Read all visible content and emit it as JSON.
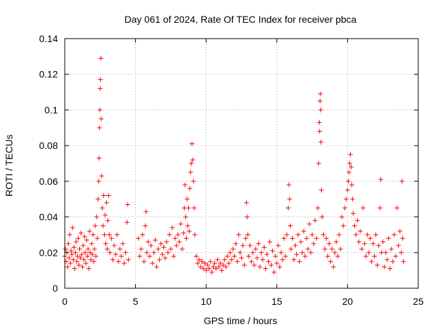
{
  "chart_data": {
    "type": "scatter",
    "title": "Day 061 of 2024, Rate Of TEC Index for receiver pbca",
    "xlabel": "GPS time / hours",
    "ylabel": "ROTI / TECUs",
    "xlim": [
      0,
      25
    ],
    "ylim": [
      0,
      0.14
    ],
    "x_ticks": [
      0,
      5,
      10,
      15,
      20,
      25
    ],
    "x_tick_labels": [
      "0",
      "5",
      "10",
      "15",
      "20",
      "25"
    ],
    "y_ticks": [
      0,
      0.02,
      0.04,
      0.06,
      0.08,
      0.1,
      0.12,
      0.14
    ],
    "y_tick_labels": [
      "0",
      "0.02",
      "0.04",
      "0.06",
      "0.08",
      "0.1",
      "0.12",
      "0.14"
    ],
    "grid": true,
    "marker": "+",
    "series": [
      {
        "name": "ROTI",
        "color": "#ff0000",
        "points": [
          [
            0.0,
            0.018
          ],
          [
            0.05,
            0.022
          ],
          [
            0.1,
            0.015
          ],
          [
            0.15,
            0.02
          ],
          [
            0.2,
            0.012
          ],
          [
            0.25,
            0.025
          ],
          [
            0.3,
            0.017
          ],
          [
            0.35,
            0.03
          ],
          [
            0.4,
            0.014
          ],
          [
            0.45,
            0.021
          ],
          [
            0.5,
            0.019
          ],
          [
            0.55,
            0.034
          ],
          [
            0.6,
            0.016
          ],
          [
            0.65,
            0.023
          ],
          [
            0.7,
            0.011
          ],
          [
            0.75,
            0.02
          ],
          [
            0.8,
            0.026
          ],
          [
            0.85,
            0.015
          ],
          [
            0.9,
            0.018
          ],
          [
            0.95,
            0.028
          ],
          [
            1.0,
            0.013
          ],
          [
            1.05,
            0.022
          ],
          [
            1.1,
            0.017
          ],
          [
            1.15,
            0.031
          ],
          [
            1.2,
            0.019
          ],
          [
            1.25,
            0.012
          ],
          [
            1.3,
            0.024
          ],
          [
            1.35,
            0.016
          ],
          [
            1.4,
            0.029
          ],
          [
            1.45,
            0.02
          ],
          [
            1.5,
            0.014
          ],
          [
            1.55,
            0.027
          ],
          [
            1.6,
            0.018
          ],
          [
            1.65,
            0.022
          ],
          [
            1.7,
            0.011
          ],
          [
            1.75,
            0.032
          ],
          [
            1.8,
            0.02
          ],
          [
            1.85,
            0.016
          ],
          [
            1.9,
            0.025
          ],
          [
            1.95,
            0.019
          ],
          [
            2.0,
            0.03
          ],
          [
            2.05,
            0.015
          ],
          [
            2.1,
            0.022
          ],
          [
            2.15,
            0.035
          ],
          [
            2.2,
            0.018
          ],
          [
            2.25,
            0.04
          ],
          [
            2.3,
            0.028
          ],
          [
            2.35,
            0.05
          ],
          [
            2.4,
            0.06
          ],
          [
            2.42,
            0.073
          ],
          [
            2.45,
            0.09
          ],
          [
            2.48,
            0.1
          ],
          [
            2.5,
            0.112
          ],
          [
            2.52,
            0.117
          ],
          [
            2.55,
            0.129
          ],
          [
            2.58,
            0.095
          ],
          [
            2.6,
            0.063
          ],
          [
            2.65,
            0.045
          ],
          [
            2.7,
            0.035
          ],
          [
            2.75,
            0.052
          ],
          [
            2.8,
            0.03
          ],
          [
            2.85,
            0.041
          ],
          [
            2.9,
            0.025
          ],
          [
            2.95,
            0.048
          ],
          [
            3.0,
            0.022
          ],
          [
            3.05,
            0.038
          ],
          [
            3.1,
            0.052
          ],
          [
            3.15,
            0.03
          ],
          [
            3.2,
            0.02
          ],
          [
            3.3,
            0.028
          ],
          [
            3.4,
            0.016
          ],
          [
            3.5,
            0.024
          ],
          [
            3.6,
            0.019
          ],
          [
            3.7,
            0.03
          ],
          [
            3.8,
            0.015
          ],
          [
            3.9,
            0.022
          ],
          [
            4.0,
            0.018
          ],
          [
            4.1,
            0.025
          ],
          [
            4.2,
            0.014
          ],
          [
            4.3,
            0.02
          ],
          [
            4.4,
            0.037
          ],
          [
            4.45,
            0.047
          ],
          [
            4.5,
            0.016
          ],
          [
            5.2,
            0.028
          ],
          [
            5.3,
            0.018
          ],
          [
            5.4,
            0.022
          ],
          [
            5.5,
            0.03
          ],
          [
            5.6,
            0.015
          ],
          [
            5.7,
            0.035
          ],
          [
            5.75,
            0.043
          ],
          [
            5.8,
            0.02
          ],
          [
            5.9,
            0.026
          ],
          [
            6.0,
            0.018
          ],
          [
            6.1,
            0.024
          ],
          [
            6.2,
            0.014
          ],
          [
            6.3,
            0.02
          ],
          [
            6.4,
            0.027
          ],
          [
            6.5,
            0.012
          ],
          [
            6.6,
            0.022
          ],
          [
            6.7,
            0.016
          ],
          [
            6.8,
            0.025
          ],
          [
            6.9,
            0.019
          ],
          [
            7.0,
            0.023
          ],
          [
            7.1,
            0.017
          ],
          [
            7.2,
            0.026
          ],
          [
            7.3,
            0.02
          ],
          [
            7.4,
            0.03
          ],
          [
            7.5,
            0.022
          ],
          [
            7.6,
            0.034
          ],
          [
            7.7,
            0.018
          ],
          [
            7.8,
            0.028
          ],
          [
            7.9,
            0.024
          ],
          [
            8.0,
            0.03
          ],
          [
            8.1,
            0.026
          ],
          [
            8.2,
            0.036
          ],
          [
            8.3,
            0.022
          ],
          [
            8.4,
            0.031
          ],
          [
            8.45,
            0.045
          ],
          [
            8.5,
            0.058
          ],
          [
            8.55,
            0.04
          ],
          [
            8.6,
            0.028
          ],
          [
            8.65,
            0.05
          ],
          [
            8.7,
            0.035
          ],
          [
            8.75,
            0.045
          ],
          [
            8.8,
            0.032
          ],
          [
            8.85,
            0.056
          ],
          [
            8.9,
            0.065
          ],
          [
            8.95,
            0.07
          ],
          [
            9.0,
            0.081
          ],
          [
            9.05,
            0.072
          ],
          [
            9.1,
            0.06
          ],
          [
            9.15,
            0.045
          ],
          [
            9.2,
            0.03
          ],
          [
            9.3,
            0.018
          ],
          [
            9.4,
            0.014
          ],
          [
            9.5,
            0.016
          ],
          [
            9.6,
            0.012
          ],
          [
            9.7,
            0.015
          ],
          [
            9.8,
            0.011
          ],
          [
            9.9,
            0.014
          ],
          [
            10.0,
            0.01
          ],
          [
            10.1,
            0.013
          ],
          [
            10.2,
            0.011
          ],
          [
            10.3,
            0.015
          ],
          [
            10.4,
            0.009
          ],
          [
            10.5,
            0.012
          ],
          [
            10.6,
            0.014
          ],
          [
            10.7,
            0.011
          ],
          [
            10.8,
            0.016
          ],
          [
            10.9,
            0.012
          ],
          [
            11.0,
            0.014
          ],
          [
            11.1,
            0.01
          ],
          [
            11.2,
            0.013
          ],
          [
            11.3,
            0.016
          ],
          [
            11.4,
            0.012
          ],
          [
            11.5,
            0.018
          ],
          [
            11.6,
            0.014
          ],
          [
            11.7,
            0.02
          ],
          [
            11.8,
            0.016
          ],
          [
            11.9,
            0.022
          ],
          [
            12.0,
            0.018
          ],
          [
            12.1,
            0.025
          ],
          [
            12.2,
            0.015
          ],
          [
            12.3,
            0.03
          ],
          [
            12.4,
            0.02
          ],
          [
            12.5,
            0.017
          ],
          [
            12.6,
            0.024
          ],
          [
            12.7,
            0.013
          ],
          [
            12.8,
            0.028
          ],
          [
            12.85,
            0.048
          ],
          [
            12.9,
            0.04
          ],
          [
            12.95,
            0.03
          ],
          [
            13.0,
            0.018
          ],
          [
            13.1,
            0.024
          ],
          [
            13.2,
            0.015
          ],
          [
            13.3,
            0.02
          ],
          [
            13.4,
            0.013
          ],
          [
            13.5,
            0.022
          ],
          [
            13.6,
            0.017
          ],
          [
            13.7,
            0.025
          ],
          [
            13.8,
            0.012
          ],
          [
            13.9,
            0.02
          ],
          [
            14.0,
            0.016
          ],
          [
            14.1,
            0.023
          ],
          [
            14.2,
            0.011
          ],
          [
            14.3,
            0.019
          ],
          [
            14.4,
            0.015
          ],
          [
            14.5,
            0.026
          ],
          [
            14.6,
            0.013
          ],
          [
            14.7,
            0.021
          ],
          [
            14.8,
            0.009
          ],
          [
            14.9,
            0.018
          ],
          [
            15.0,
            0.014
          ],
          [
            15.1,
            0.024
          ],
          [
            15.2,
            0.012
          ],
          [
            15.3,
            0.02
          ],
          [
            15.4,
            0.016
          ],
          [
            15.5,
            0.028
          ],
          [
            15.6,
            0.018
          ],
          [
            15.7,
            0.03
          ],
          [
            15.8,
            0.045
          ],
          [
            15.85,
            0.058
          ],
          [
            15.9,
            0.05
          ],
          [
            15.95,
            0.035
          ],
          [
            16.0,
            0.022
          ],
          [
            16.1,
            0.028
          ],
          [
            16.2,
            0.016
          ],
          [
            16.3,
            0.024
          ],
          [
            16.4,
            0.019
          ],
          [
            16.5,
            0.03
          ],
          [
            16.6,
            0.015
          ],
          [
            16.7,
            0.026
          ],
          [
            16.8,
            0.02
          ],
          [
            16.9,
            0.032
          ],
          [
            17.0,
            0.018
          ],
          [
            17.1,
            0.028
          ],
          [
            17.2,
            0.022
          ],
          [
            17.3,
            0.036
          ],
          [
            17.4,
            0.02
          ],
          [
            17.5,
            0.03
          ],
          [
            17.6,
            0.025
          ],
          [
            17.7,
            0.038
          ],
          [
            17.8,
            0.028
          ],
          [
            17.9,
            0.045
          ],
          [
            17.95,
            0.07
          ],
          [
            18.0,
            0.093
          ],
          [
            18.02,
            0.088
          ],
          [
            18.05,
            0.105
          ],
          [
            18.08,
            0.109
          ],
          [
            18.1,
            0.1
          ],
          [
            18.12,
            0.082
          ],
          [
            18.15,
            0.055
          ],
          [
            18.2,
            0.04
          ],
          [
            18.3,
            0.03
          ],
          [
            18.4,
            0.022
          ],
          [
            18.5,
            0.028
          ],
          [
            18.6,
            0.018
          ],
          [
            18.7,
            0.025
          ],
          [
            18.8,
            0.015
          ],
          [
            18.9,
            0.022
          ],
          [
            19.0,
            0.012
          ],
          [
            19.1,
            0.02
          ],
          [
            19.2,
            0.026
          ],
          [
            19.3,
            0.018
          ],
          [
            19.4,
            0.03
          ],
          [
            19.5,
            0.022
          ],
          [
            19.6,
            0.04
          ],
          [
            19.7,
            0.035
          ],
          [
            19.8,
            0.045
          ],
          [
            19.9,
            0.05
          ],
          [
            20.0,
            0.055
          ],
          [
            20.05,
            0.06
          ],
          [
            20.1,
            0.065
          ],
          [
            20.15,
            0.07
          ],
          [
            20.2,
            0.075
          ],
          [
            20.25,
            0.068
          ],
          [
            20.3,
            0.058
          ],
          [
            20.35,
            0.05
          ],
          [
            20.4,
            0.042
          ],
          [
            20.5,
            0.035
          ],
          [
            20.6,
            0.03
          ],
          [
            20.7,
            0.038
          ],
          [
            20.8,
            0.026
          ],
          [
            20.9,
            0.032
          ],
          [
            21.0,
            0.022
          ],
          [
            21.1,
            0.045
          ],
          [
            21.2,
            0.025
          ],
          [
            21.3,
            0.018
          ],
          [
            21.4,
            0.03
          ],
          [
            21.5,
            0.02
          ],
          [
            21.6,
            0.028
          ],
          [
            21.7,
            0.015
          ],
          [
            21.8,
            0.025
          ],
          [
            21.9,
            0.018
          ],
          [
            22.0,
            0.03
          ],
          [
            22.1,
            0.013
          ],
          [
            22.2,
            0.024
          ],
          [
            22.3,
            0.045
          ],
          [
            22.35,
            0.061
          ],
          [
            22.4,
            0.02
          ],
          [
            22.5,
            0.026
          ],
          [
            22.6,
            0.012
          ],
          [
            22.7,
            0.02
          ],
          [
            22.8,
            0.016
          ],
          [
            22.9,
            0.028
          ],
          [
            23.0,
            0.011
          ],
          [
            23.1,
            0.022
          ],
          [
            23.2,
            0.015
          ],
          [
            23.3,
            0.03
          ],
          [
            23.4,
            0.018
          ],
          [
            23.5,
            0.045
          ],
          [
            23.6,
            0.024
          ],
          [
            23.7,
            0.032
          ],
          [
            23.8,
            0.02
          ],
          [
            23.85,
            0.06
          ],
          [
            23.9,
            0.028
          ],
          [
            23.95,
            0.015
          ]
        ]
      }
    ]
  }
}
